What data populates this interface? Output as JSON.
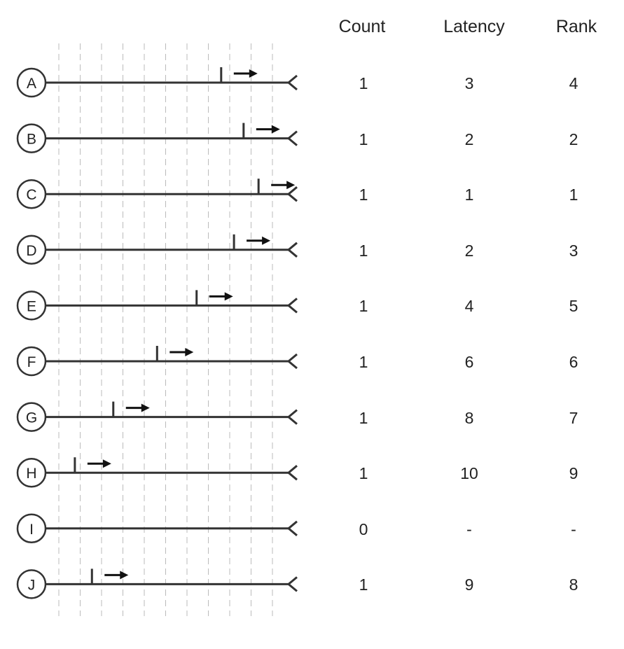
{
  "columns": {
    "count": "Count",
    "latency": "Latency",
    "rank": "Rank"
  },
  "lanes": [
    {
      "label": "A",
      "marker_step": 7.6,
      "count": "1",
      "latency": "3",
      "rank": "4"
    },
    {
      "label": "B",
      "marker_step": 8.65,
      "count": "1",
      "latency": "2",
      "rank": "2"
    },
    {
      "label": "C",
      "marker_step": 9.35,
      "count": "1",
      "latency": "1",
      "rank": "1"
    },
    {
      "label": "D",
      "marker_step": 8.2,
      "count": "1",
      "latency": "2",
      "rank": "3"
    },
    {
      "label": "E",
      "marker_step": 6.45,
      "count": "1",
      "latency": "4",
      "rank": "5"
    },
    {
      "label": "F",
      "marker_step": 4.6,
      "count": "1",
      "latency": "6",
      "rank": "6"
    },
    {
      "label": "G",
      "marker_step": 2.55,
      "count": "1",
      "latency": "8",
      "rank": "7"
    },
    {
      "label": "H",
      "marker_step": 0.75,
      "count": "1",
      "latency": "10",
      "rank": "9"
    },
    {
      "label": "I",
      "marker_step": null,
      "count": "0",
      "latency": "-",
      "rank": "-"
    },
    {
      "label": "J",
      "marker_step": 1.55,
      "count": "1",
      "latency": "9",
      "rank": "8"
    }
  ],
  "grid_steps": 10,
  "colors": {
    "line": "#333333",
    "grid": "#bbbbbb",
    "text": "#222222"
  }
}
